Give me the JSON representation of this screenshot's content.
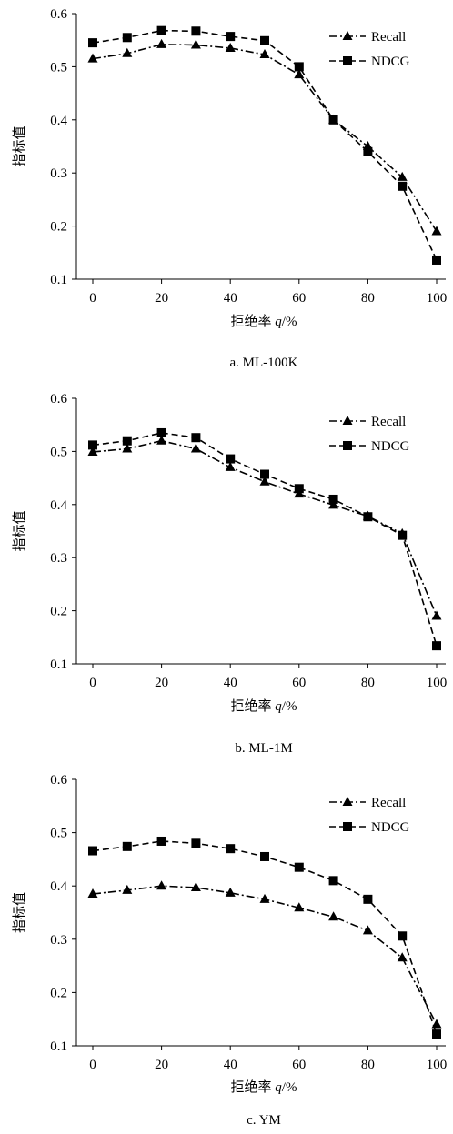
{
  "chart_data": [
    {
      "type": "line",
      "caption": "a. ML-100K",
      "xlabel_prefix": "拒绝率 ",
      "xlabel_var": "q",
      "xlabel_suffix": "/%",
      "ylabel": "指标值",
      "xlim": [
        0,
        100
      ],
      "ylim": [
        0.1,
        0.6
      ],
      "xticks": [
        0,
        20,
        40,
        60,
        80,
        100
      ],
      "yticks": [
        "0.1",
        "0.2",
        "0.3",
        "0.4",
        "0.5",
        "0.6"
      ],
      "legend_position": "top-right",
      "grid": false,
      "x": [
        0,
        10,
        20,
        30,
        40,
        50,
        60,
        70,
        80,
        90,
        100
      ],
      "series": [
        {
          "name": "Recall",
          "marker": "triangle",
          "dash": "dashdot",
          "values": [
            0.515,
            0.525,
            0.542,
            0.541,
            0.535,
            0.523,
            0.485,
            0.4,
            0.35,
            0.292,
            0.19
          ]
        },
        {
          "name": "NDCG",
          "marker": "square",
          "dash": "dashed",
          "values": [
            0.545,
            0.555,
            0.568,
            0.567,
            0.557,
            0.549,
            0.5,
            0.4,
            0.34,
            0.275,
            0.136
          ]
        }
      ]
    },
    {
      "type": "line",
      "caption": "b. ML-1M",
      "xlabel_prefix": "拒绝率 ",
      "xlabel_var": "q",
      "xlabel_suffix": "/%",
      "ylabel": "指标值",
      "xlim": [
        0,
        100
      ],
      "ylim": [
        0.1,
        0.6
      ],
      "xticks": [
        0,
        20,
        40,
        60,
        80,
        100
      ],
      "yticks": [
        "0.1",
        "0.2",
        "0.3",
        "0.4",
        "0.5",
        "0.6"
      ],
      "legend_position": "top-right",
      "grid": false,
      "x": [
        0,
        10,
        20,
        30,
        40,
        50,
        60,
        70,
        80,
        90,
        100
      ],
      "series": [
        {
          "name": "Recall",
          "marker": "triangle",
          "dash": "dashdot",
          "values": [
            0.499,
            0.505,
            0.52,
            0.505,
            0.47,
            0.443,
            0.42,
            0.399,
            0.378,
            0.345,
            0.19
          ]
        },
        {
          "name": "NDCG",
          "marker": "square",
          "dash": "dashed",
          "values": [
            0.512,
            0.52,
            0.535,
            0.526,
            0.486,
            0.457,
            0.43,
            0.41,
            0.377,
            0.342,
            0.134
          ]
        }
      ]
    },
    {
      "type": "line",
      "caption": "c. YM",
      "xlabel_prefix": "拒绝率 ",
      "xlabel_var": "q",
      "xlabel_suffix": "/%",
      "ylabel": "指标值",
      "xlim": [
        0,
        100
      ],
      "ylim": [
        0.1,
        0.6
      ],
      "xticks": [
        0,
        20,
        40,
        60,
        80,
        100
      ],
      "yticks": [
        "0.1",
        "0.2",
        "0.3",
        "0.4",
        "0.5",
        "0.6"
      ],
      "legend_position": "top-right",
      "grid": false,
      "x": [
        0,
        10,
        20,
        30,
        40,
        50,
        60,
        70,
        80,
        90,
        100
      ],
      "series": [
        {
          "name": "Recall",
          "marker": "triangle",
          "dash": "dashdot",
          "values": [
            0.385,
            0.392,
            0.4,
            0.397,
            0.387,
            0.375,
            0.359,
            0.342,
            0.316,
            0.265,
            0.14
          ]
        },
        {
          "name": "NDCG",
          "marker": "square",
          "dash": "dashed",
          "values": [
            0.466,
            0.474,
            0.484,
            0.48,
            0.47,
            0.455,
            0.435,
            0.41,
            0.375,
            0.306,
            0.122
          ]
        }
      ]
    }
  ]
}
